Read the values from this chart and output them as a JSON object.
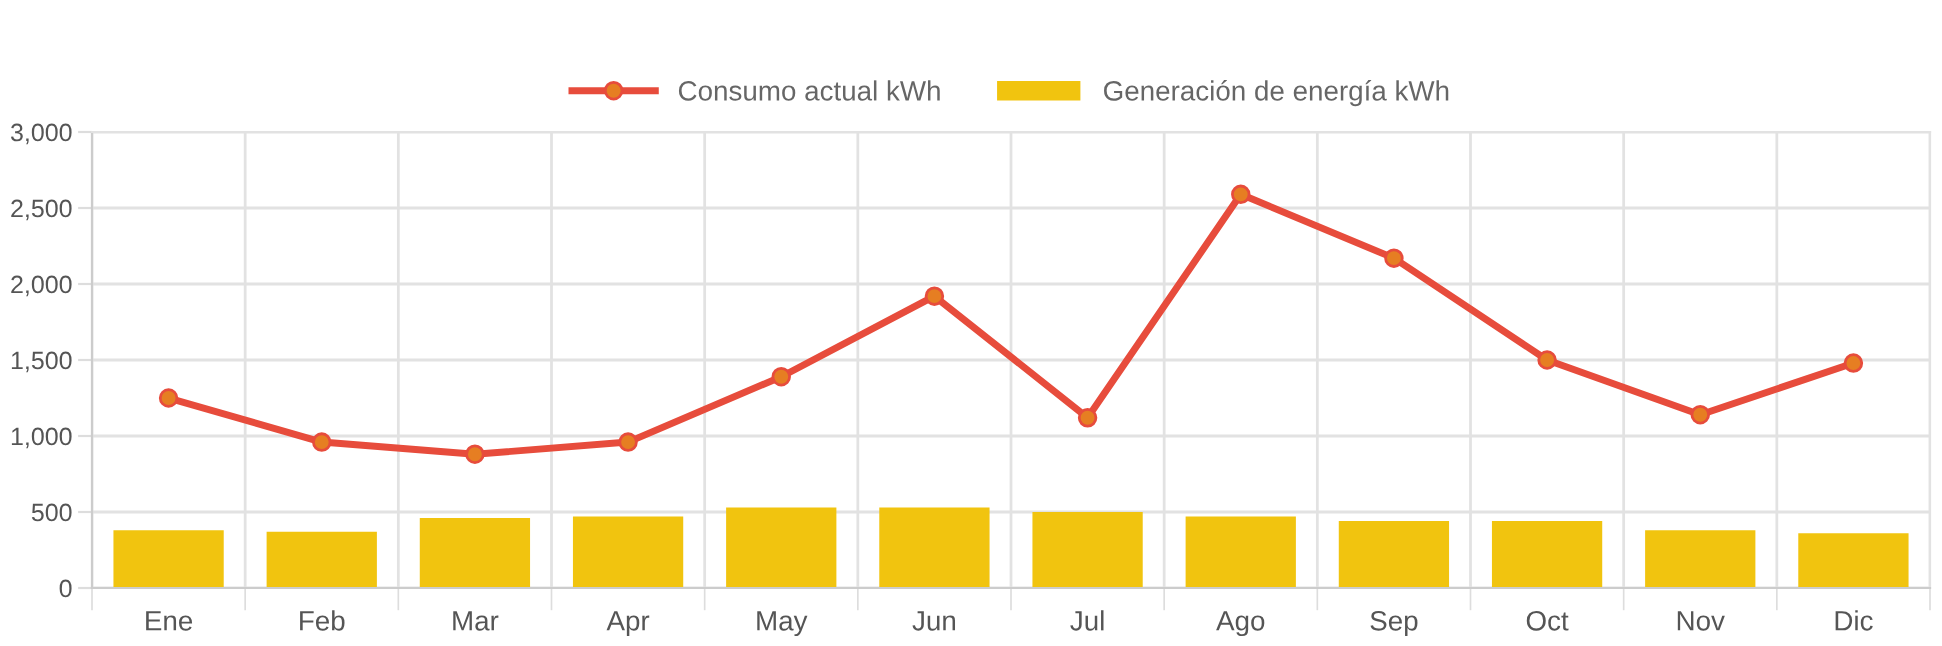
{
  "chart_data": {
    "type": "bar",
    "categories": [
      "Ene",
      "Feb",
      "Mar",
      "Apr",
      "May",
      "Jun",
      "Jul",
      "Ago",
      "Sep",
      "Oct",
      "Nov",
      "Dic"
    ],
    "series": [
      {
        "name": "Consumo actual kWh",
        "type": "line",
        "color": "#e74c3c",
        "values": [
          1250,
          960,
          880,
          960,
          1390,
          1920,
          1120,
          2590,
          2170,
          1500,
          1140,
          1480
        ]
      },
      {
        "name": "Generación de energía kWh",
        "color": "#f1c40f",
        "values": [
          380,
          370,
          460,
          470,
          530,
          530,
          500,
          470,
          440,
          440,
          380,
          360
        ]
      }
    ],
    "ylim": [
      0,
      3000
    ],
    "yticks": [
      {
        "value": 0,
        "label": "0"
      },
      {
        "value": 500,
        "label": "500"
      },
      {
        "value": 1000,
        "label": "1,000"
      },
      {
        "value": 1500,
        "label": "1,500"
      },
      {
        "value": 2000,
        "label": "2,000"
      },
      {
        "value": 2500,
        "label": "2,500"
      },
      {
        "value": 3000,
        "label": "3,000"
      }
    ],
    "grid": true,
    "legend": "top",
    "marker": "circle",
    "line_style": "solid"
  }
}
